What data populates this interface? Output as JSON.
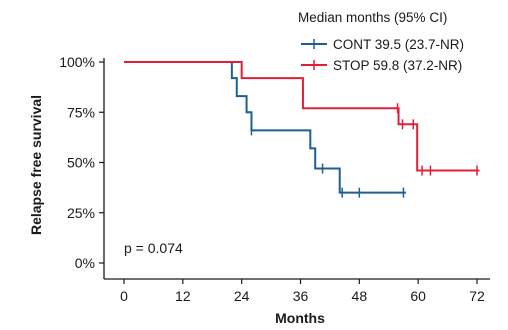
{
  "chart_data": {
    "type": "line",
    "step": true,
    "ylabel": "Relapse free survival",
    "xlabel": "Months",
    "xticks": [
      0,
      12,
      24,
      36,
      48,
      60,
      72
    ],
    "yticks": [
      0,
      25,
      50,
      75,
      100
    ],
    "ytick_labels": [
      "0%",
      "25%",
      "50%",
      "75%",
      "100%"
    ],
    "xlim": [
      0,
      72
    ],
    "ylim": [
      0,
      100
    ],
    "legend_title": "Median months (95% CI)",
    "annotation": "p = 0.074",
    "series": [
      {
        "name": "CONT 39.5 (23.7-NR)",
        "color": "#1f5f8f",
        "steps": [
          [
            0,
            100
          ],
          [
            22,
            92
          ],
          [
            23,
            83
          ],
          [
            25,
            75
          ],
          [
            26,
            66
          ],
          [
            38,
            57
          ],
          [
            39,
            47
          ],
          [
            44,
            35
          ],
          [
            57.5,
            35
          ]
        ],
        "censor": [
          [
            26,
            66
          ],
          [
            40.5,
            47
          ],
          [
            44.5,
            35
          ],
          [
            48,
            35
          ],
          [
            57,
            35
          ]
        ]
      },
      {
        "name": "STOP 59.8 (37.2-NR)",
        "color": "#e0203a",
        "steps": [
          [
            0,
            100
          ],
          [
            24,
            92
          ],
          [
            36.5,
            77
          ],
          [
            56,
            69
          ],
          [
            59.8,
            46
          ],
          [
            72.5,
            46
          ]
        ],
        "censor": [
          [
            36.5,
            84
          ],
          [
            55.8,
            77
          ],
          [
            56.8,
            69
          ],
          [
            59,
            69
          ],
          [
            60.8,
            46
          ],
          [
            62.5,
            46
          ],
          [
            72,
            46
          ]
        ]
      }
    ]
  }
}
